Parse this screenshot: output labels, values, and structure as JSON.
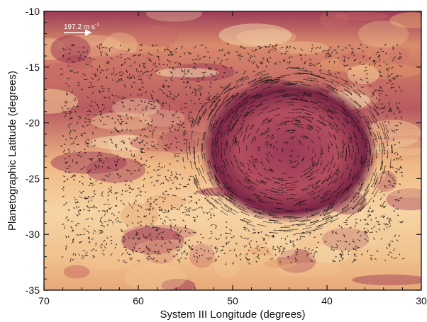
{
  "chart_data": {
    "type": "scatter",
    "title": "",
    "xlabel": "System III Longitude (degrees)",
    "ylabel": "Planetographic Latitude (degrees)",
    "xlim": [
      70,
      30
    ],
    "ylim": [
      -35,
      -10
    ],
    "x_reversed": true,
    "xticks": [
      70,
      60,
      50,
      40,
      30
    ],
    "yticks": [
      -10,
      -15,
      -20,
      -25,
      -30,
      -35
    ],
    "grid": false,
    "background": "cloud-brightness image (cream/orange/red colormap)",
    "vortex_center": {
      "lon": 44,
      "lat": -22.5
    },
    "vortex_radius": {
      "lon": 9.5,
      "lat": 6.5
    },
    "vector_field_extent": {
      "lon": [
        68,
        32
      ],
      "lat": [
        -32.5,
        -13
      ]
    },
    "scale_arrow": {
      "label": "197.2 m s",
      "exponent": "-1",
      "value": 197.2,
      "unit": "m s-1"
    }
  },
  "colors": {
    "cream": "#f6dcb0",
    "orange": "#e3a06c",
    "red": "#a4405a",
    "dark": "#6b2040",
    "vector": "#151010"
  }
}
